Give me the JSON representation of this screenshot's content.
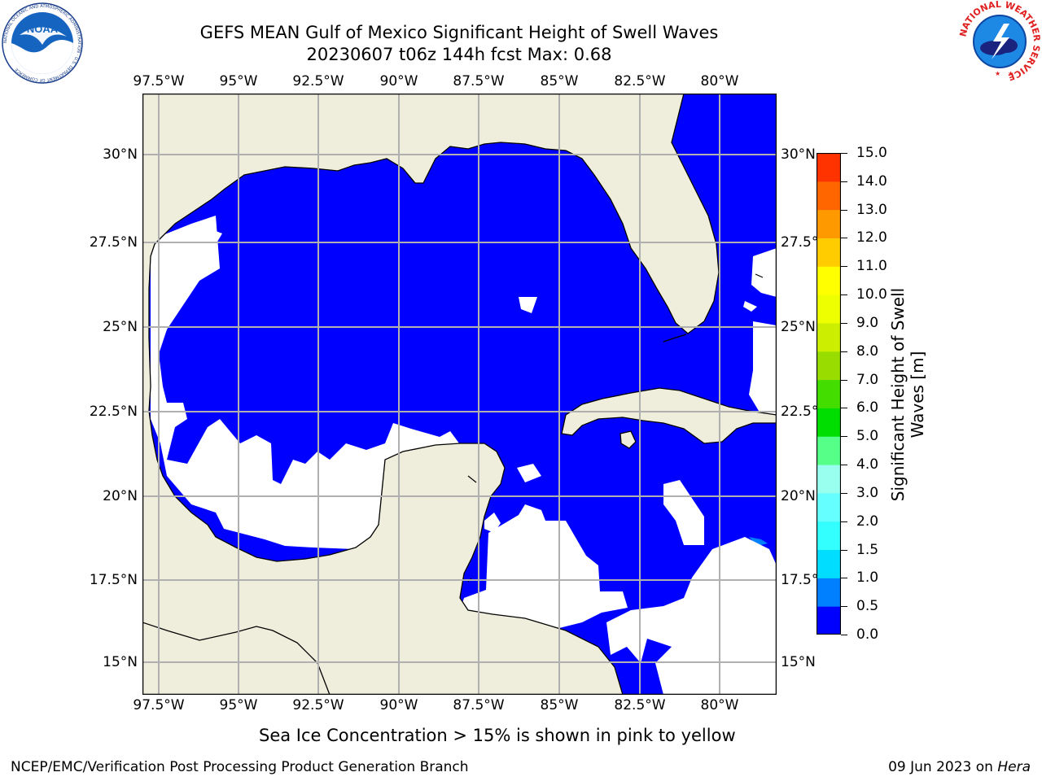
{
  "title_line1": "GEFS MEAN Gulf of Mexico Significant Height of Swell Waves",
  "title_line2": "20230607 t06z 144h fcst   Max: 0.68",
  "lon_labels": [
    "97.5°W",
    "95°W",
    "92.5°W",
    "90°W",
    "87.5°W",
    "85°W",
    "82.5°W",
    "80°W"
  ],
  "lat_labels": [
    "30°N",
    "27.5°N",
    "25°N",
    "22.5°N",
    "20°N",
    "17.5°N",
    "15°N"
  ],
  "colorbar": {
    "ticks": [
      "0.0",
      "0.5",
      "1.0",
      "1.5",
      "2.0",
      "3.0",
      "4.0",
      "5.0",
      "6.0",
      "7.0",
      "8.0",
      "9.0",
      "10.0",
      "11.0",
      "12.0",
      "13.0",
      "14.0",
      "15.0"
    ],
    "colors": [
      "#0000ff",
      "#0080ff",
      "#00ddff",
      "#33ffff",
      "#66ffff",
      "#99ffee",
      "#55ff88",
      "#00dd00",
      "#44dd00",
      "#99dd00",
      "#ccee00",
      "#eeff00",
      "#ffff00",
      "#ffcc00",
      "#ff9900",
      "#ff6600",
      "#ff3300",
      "#ff0000"
    ],
    "label": "Significant Height of Swell Waves [m]"
  },
  "colors": {
    "ocean_swell": "#0000ff",
    "ocean_swell_high": "#0080ff",
    "ocean_no_data": "#ffffff",
    "land": "#efeedd",
    "grid": "#b0b0b0",
    "coast": "#000000"
  },
  "ice_note": "Sea Ice Concentration > 15% is shown in pink to yellow",
  "footer_left": "NCEP/EMC/Verification Post Processing Product Generation Branch",
  "footer_date": "09 Jun 2023 on",
  "footer_machine": "Hera",
  "logo_left": {
    "text": "NOAA",
    "ring_text": "NATIONAL OCEANIC AND ATMOSPHERIC ADMINISTRATION · U.S. DEPARTMENT OF COMMERCE"
  },
  "logo_right": {
    "ring_text": "NATIONAL WEATHER SERVICE"
  }
}
